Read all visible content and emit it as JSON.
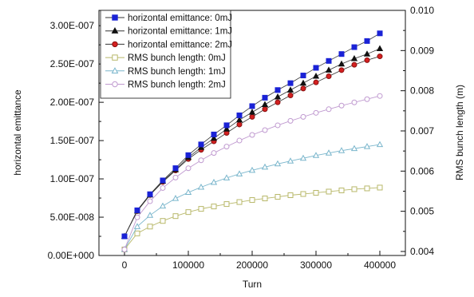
{
  "chart_data": {
    "type": "line",
    "xlabel": "Turn",
    "ylabel_left": "horizontal emittance",
    "ylabel_right": "RMS bunch length (m)",
    "x_ticks": [
      "0",
      "100000",
      "200000",
      "300000",
      "400000"
    ],
    "y_left_ticks": [
      "0.00E+000",
      "5.00E-008",
      "1.00E-007",
      "1.50E-007",
      "2.00E-007",
      "2.50E-007",
      "3.00E-007"
    ],
    "y_right_ticks": [
      "0.004",
      "0.005",
      "0.006",
      "0.007",
      "0.008",
      "0.009",
      "0.010"
    ],
    "xlim": [
      -40000,
      440000
    ],
    "ylim_left": [
      0,
      3.2e-07
    ],
    "ylim_right": [
      0.0039,
      0.01
    ],
    "legend_position": "top-left",
    "x": [
      0,
      20000,
      40000,
      60000,
      80000,
      100000,
      120000,
      140000,
      160000,
      180000,
      200000,
      220000,
      240000,
      260000,
      280000,
      300000,
      320000,
      340000,
      360000,
      380000,
      400000
    ],
    "series": [
      {
        "name": "horizontal emittance: 0mJ",
        "axis": "left",
        "marker": "square",
        "filled": true,
        "color": "#1a22d6",
        "values": [
          2.5e-08,
          5.9e-08,
          8e-08,
          9.8e-08,
          1.14e-07,
          1.31e-07,
          1.45e-07,
          1.58e-07,
          1.7e-07,
          1.83e-07,
          1.95e-07,
          2.06e-07,
          2.16e-07,
          2.25e-07,
          2.35e-07,
          2.45e-07,
          2.54e-07,
          2.63e-07,
          2.72e-07,
          2.8e-07,
          2.9e-07
        ]
      },
      {
        "name": "horizontal emittance: 1mJ",
        "axis": "left",
        "marker": "triangle",
        "filled": true,
        "color": "#111111",
        "values": [
          2.5e-08,
          5.8e-08,
          7.9e-08,
          9.7e-08,
          1.12e-07,
          1.28e-07,
          1.41e-07,
          1.53e-07,
          1.65e-07,
          1.77e-07,
          1.87e-07,
          1.97e-07,
          2.07e-07,
          2.16e-07,
          2.25e-07,
          2.34e-07,
          2.42e-07,
          2.5e-07,
          2.57e-07,
          2.63e-07,
          2.7e-07
        ]
      },
      {
        "name": "horizontal emittance: 2mJ",
        "axis": "left",
        "marker": "circle",
        "filled": true,
        "color": "#d42020",
        "values": [
          2.5e-08,
          5.8e-08,
          7.9e-08,
          9.6e-08,
          1.11e-07,
          1.26e-07,
          1.38e-07,
          1.49e-07,
          1.6e-07,
          1.71e-07,
          1.81e-07,
          1.91e-07,
          2e-07,
          2.09e-07,
          2.18e-07,
          2.26e-07,
          2.34e-07,
          2.42e-07,
          2.49e-07,
          2.55e-07,
          2.6e-07
        ]
      },
      {
        "name": "RMS bunch length: 0mJ",
        "axis": "right",
        "marker": "square",
        "filled": false,
        "color": "#b8b86a",
        "values": [
          0.00405,
          0.00445,
          0.00462,
          0.00476,
          0.00488,
          0.00498,
          0.00506,
          0.00512,
          0.00518,
          0.00523,
          0.00528,
          0.00532,
          0.00536,
          0.0054,
          0.00543,
          0.00546,
          0.00549,
          0.00552,
          0.00555,
          0.00557,
          0.00559
        ]
      },
      {
        "name": "RMS bunch length: 1mJ",
        "axis": "right",
        "marker": "triangle",
        "filled": false,
        "color": "#7ab6cc",
        "values": [
          0.00405,
          0.00462,
          0.0049,
          0.00513,
          0.00532,
          0.00547,
          0.0056,
          0.00572,
          0.00583,
          0.00593,
          0.00602,
          0.0061,
          0.00618,
          0.00625,
          0.00632,
          0.00639,
          0.00645,
          0.00651,
          0.00656,
          0.00661,
          0.00666
        ]
      },
      {
        "name": "RMS bunch length: 2mJ",
        "axis": "right",
        "marker": "circle",
        "filled": false,
        "color": "#c09ad0",
        "values": [
          0.00405,
          0.00485,
          0.00525,
          0.00558,
          0.00584,
          0.00607,
          0.00627,
          0.00645,
          0.00661,
          0.00676,
          0.0069,
          0.00702,
          0.00714,
          0.00725,
          0.00735,
          0.00745,
          0.00754,
          0.00763,
          0.00771,
          0.00779,
          0.00787
        ]
      }
    ]
  }
}
